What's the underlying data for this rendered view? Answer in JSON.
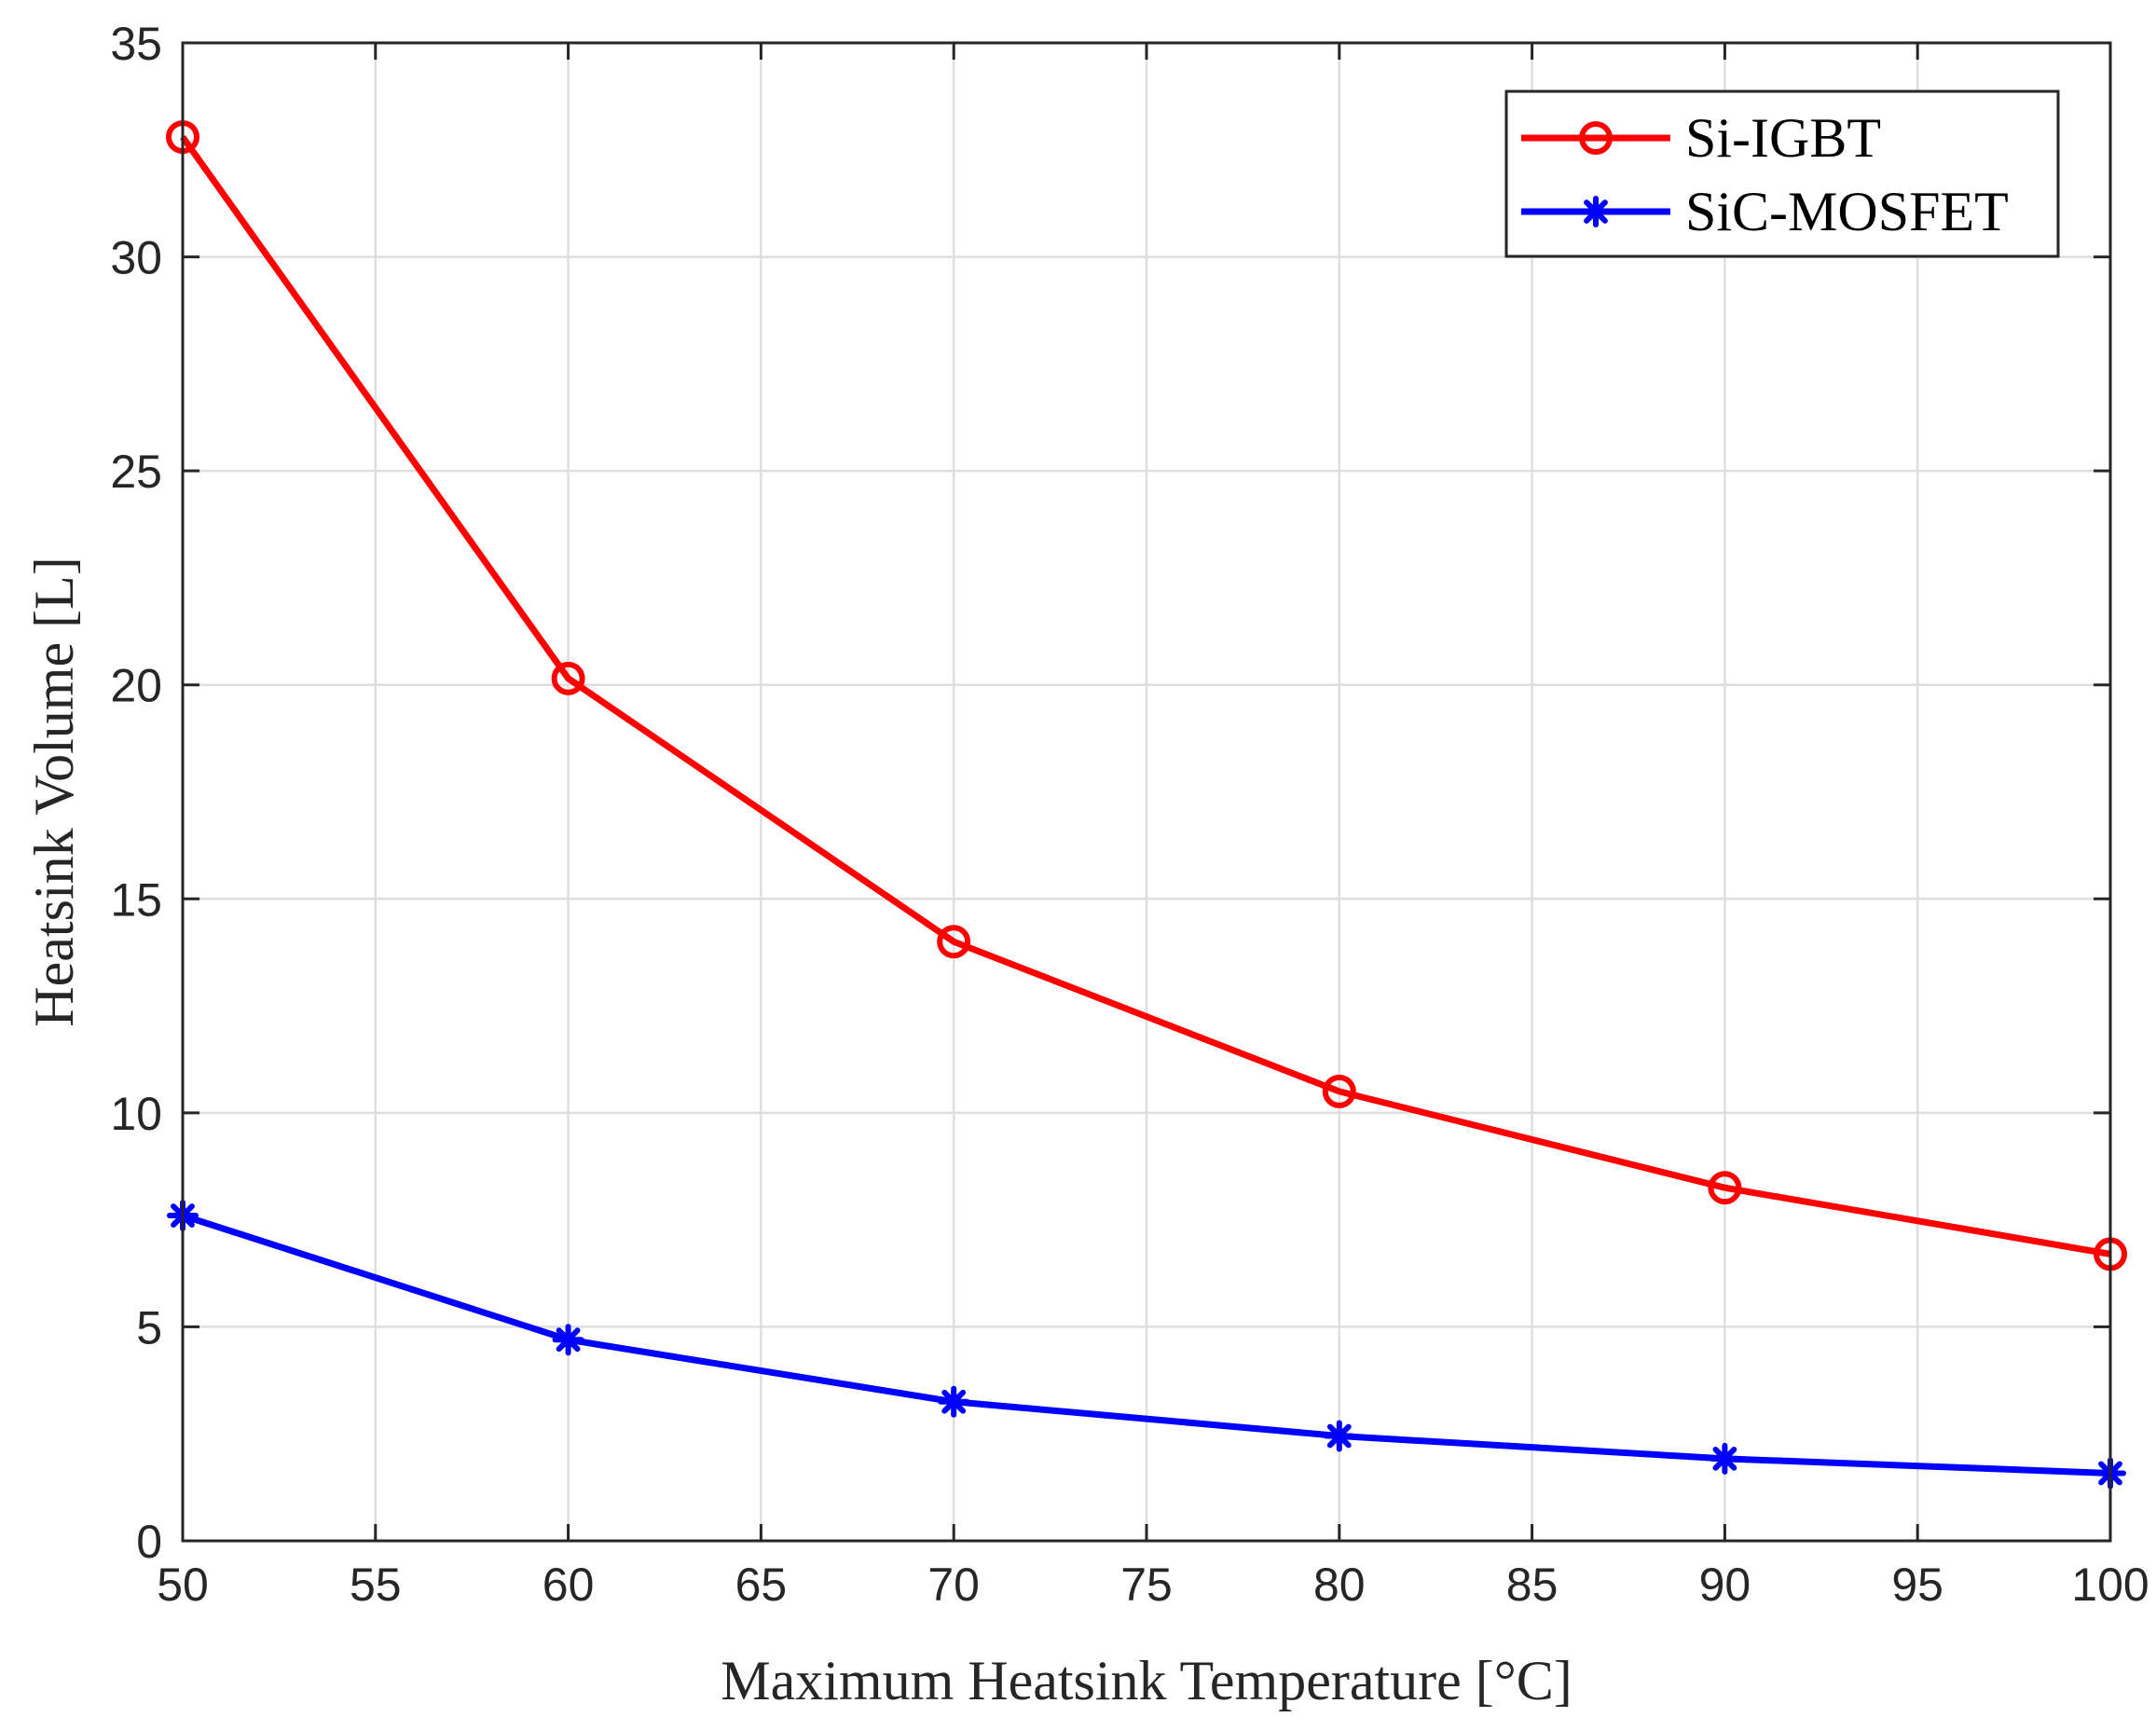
{
  "chart_data": {
    "type": "line",
    "title": "",
    "xlabel": "Maximum Heatsink Temperature [°C]",
    "ylabel": "Heatsink Volume [L]",
    "xlim": [
      50,
      100
    ],
    "ylim": [
      0,
      35
    ],
    "xticks": [
      50,
      55,
      60,
      65,
      70,
      75,
      80,
      85,
      90,
      95,
      100
    ],
    "yticks": [
      0,
      5,
      10,
      15,
      20,
      25,
      30,
      35
    ],
    "xtick_labels": [
      "50",
      "55",
      "60",
      "65",
      "70",
      "75",
      "80",
      "85",
      "90",
      "95",
      "100"
    ],
    "ytick_labels": [
      "0",
      "5",
      "10",
      "15",
      "20",
      "25",
      "30",
      "35"
    ],
    "grid": true,
    "legend_position": "top-right",
    "x": [
      50,
      60,
      70,
      80,
      90,
      100
    ],
    "series": [
      {
        "name": "Si-IGBT",
        "values": [
          32.8,
          20.15,
          14.0,
          10.5,
          8.25,
          6.7
        ],
        "color": "#ff0000",
        "marker": "circle"
      },
      {
        "name": "SiC-MOSFET",
        "values": [
          7.6,
          4.7,
          3.25,
          2.45,
          1.92,
          1.58
        ],
        "color": "#0000ff",
        "marker": "asterisk"
      }
    ]
  }
}
